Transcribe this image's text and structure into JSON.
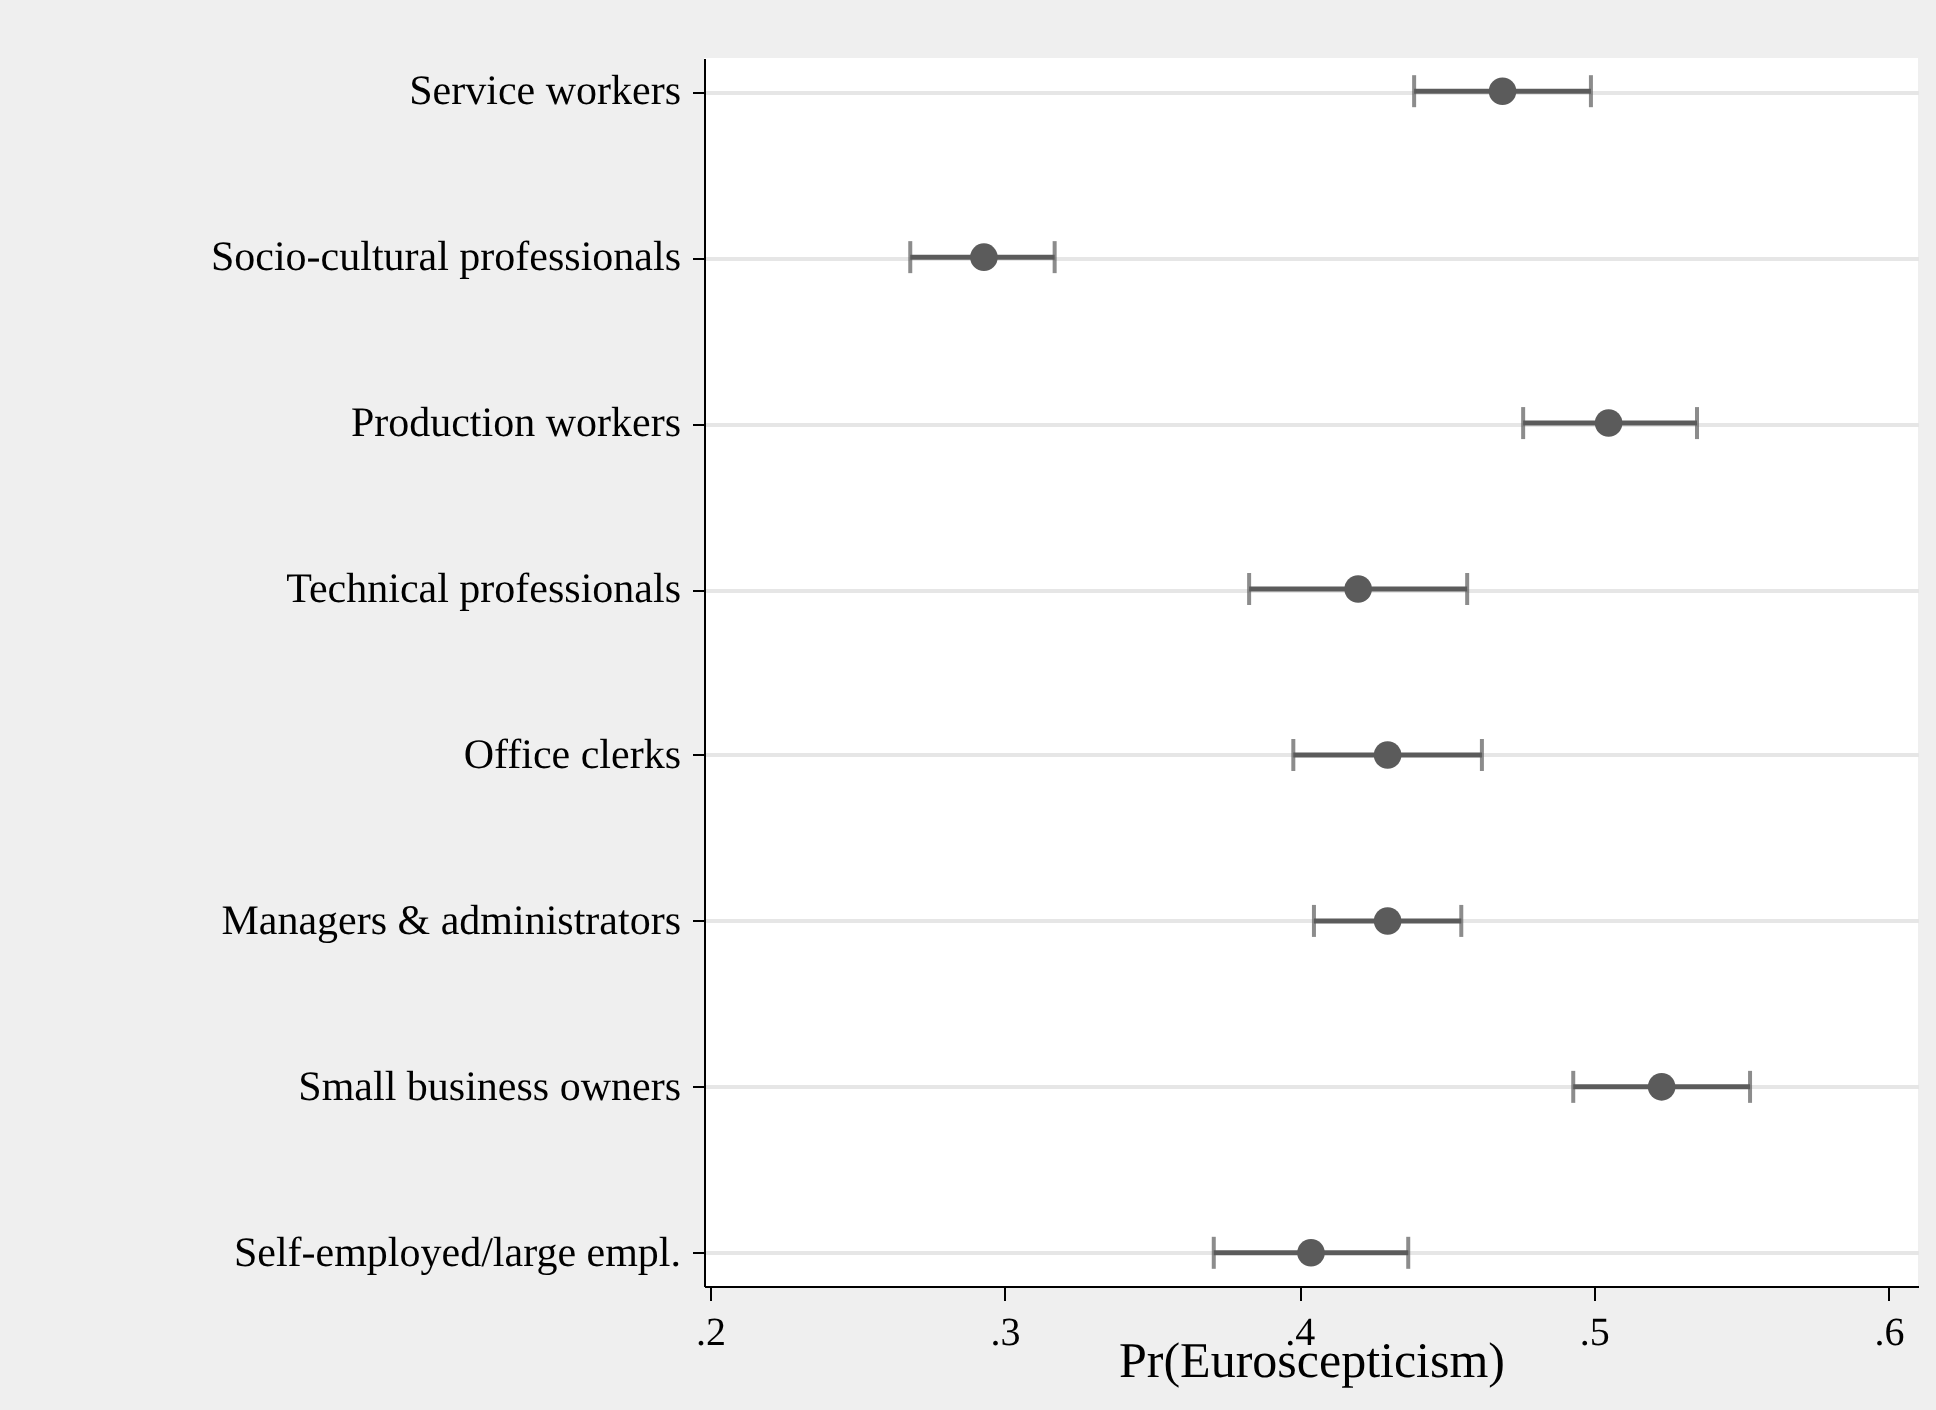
{
  "chart_data": {
    "type": "scatter",
    "orientation": "horizontal",
    "xlabel": "Pr(Euroscepticism)",
    "categories": [
      "Service workers",
      "Socio-cultural professionals",
      "Production workers",
      "Technical professionals",
      "Office clerks",
      "Managers & administrators",
      "Small business owners",
      "Self-employed/large empl."
    ],
    "values": [
      0.469,
      0.293,
      0.505,
      0.42,
      0.43,
      0.43,
      0.523,
      0.404
    ],
    "errors": [
      [
        0.439,
        0.499
      ],
      [
        0.268,
        0.317
      ],
      [
        0.476,
        0.535
      ],
      [
        0.383,
        0.457
      ],
      [
        0.398,
        0.462
      ],
      [
        0.405,
        0.455
      ],
      [
        0.493,
        0.553
      ],
      [
        0.371,
        0.437
      ]
    ],
    "color": "#5b5b5b",
    "marker": "circle",
    "grid": "y",
    "xlim": [
      0.198,
      0.61
    ],
    "xticks": [
      {
        "value": 0.2,
        "label": ".2"
      },
      {
        "value": 0.3,
        "label": ".3"
      },
      {
        "value": 0.4,
        "label": ".4"
      },
      {
        "value": 0.5,
        "label": ".5"
      },
      {
        "value": 0.6,
        "label": ".6"
      }
    ]
  }
}
